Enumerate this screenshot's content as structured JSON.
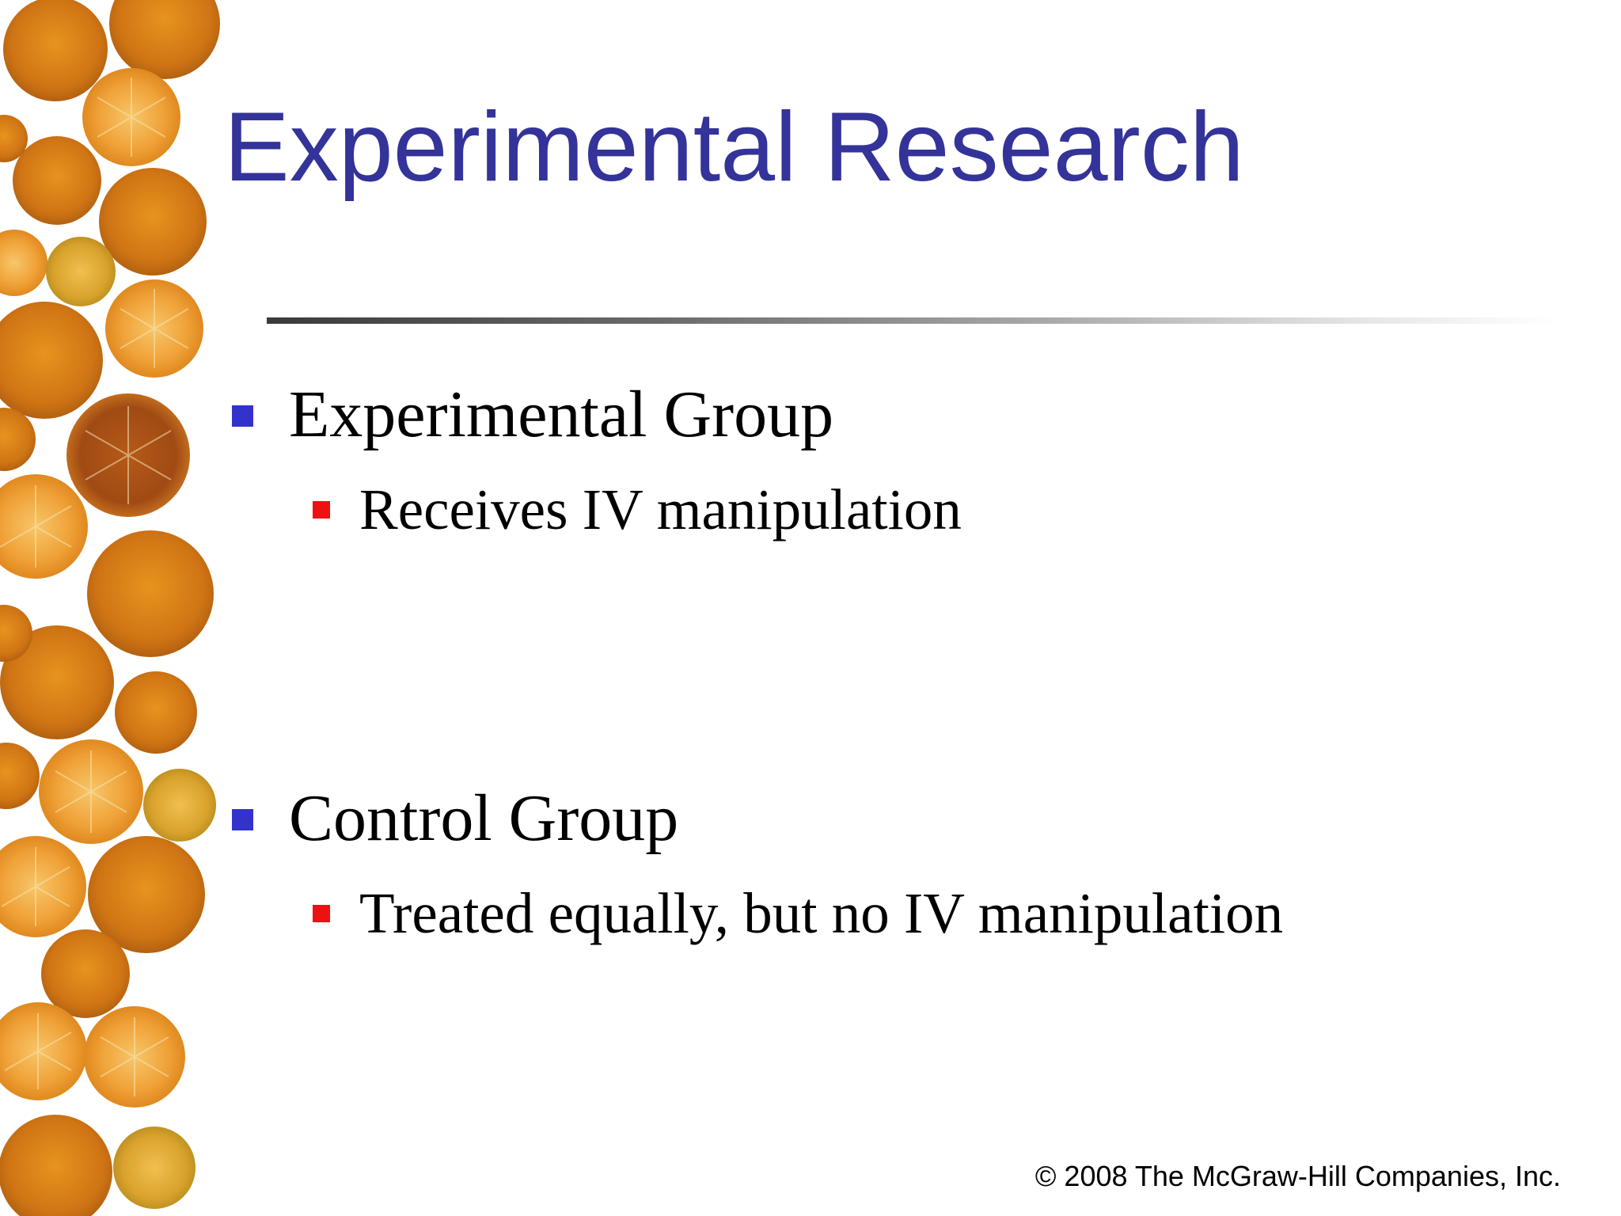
{
  "slide": {
    "title": "Experimental Research",
    "bullets": [
      {
        "text": "Experimental Group",
        "sub": "Receives IV manipulation"
      },
      {
        "text": "Control Group",
        "sub": "Treated equally, but no IV manipulation"
      }
    ],
    "copyright": "© 2008 The McGraw-Hill Companies, Inc."
  },
  "colors": {
    "title": "#333399",
    "bullet_level1": "#3333cc",
    "bullet_level2": "#ee1111",
    "fruit_orange": "#e0801e",
    "fruit_rind": "#f0b040"
  }
}
